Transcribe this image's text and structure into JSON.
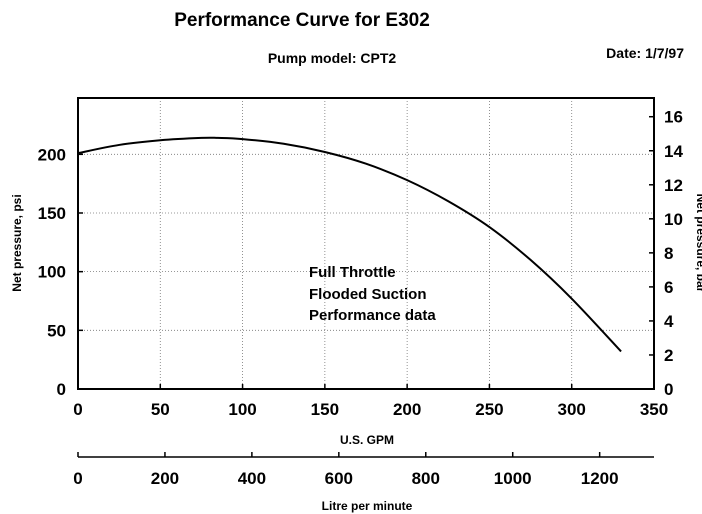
{
  "page": {
    "title": "Performance Curve for E302",
    "pump_model": "Pump model: CPT2",
    "date": "Date: 1/7/97"
  },
  "chart_data": {
    "type": "line",
    "title": "Performance Curve for E302",
    "xlabel": "U.S. GPM",
    "ylabel": "Net pressure, psi",
    "y2label": "Net pressure, bar",
    "x2label": "Litre per minute",
    "xlim": [
      0,
      350
    ],
    "ylim": [
      0,
      248
    ],
    "y2lim": [
      0,
      17.1
    ],
    "x2lim": [
      0,
      1325
    ],
    "x_ticks": [
      0,
      50,
      100,
      150,
      200,
      250,
      300,
      350
    ],
    "y_ticks": [
      0,
      50,
      100,
      150,
      200
    ],
    "y2_ticks": [
      0,
      2,
      4,
      6,
      8,
      10,
      12,
      14,
      16
    ],
    "x2_ticks": [
      0,
      200,
      400,
      600,
      800,
      1000,
      1200
    ],
    "grid": true,
    "annotations": [
      "Full Throttle",
      "Flooded Suction",
      "Performance data"
    ],
    "series": [
      {
        "x": [
          0,
          25,
          50,
          75,
          85,
          100,
          125,
          150,
          175,
          200,
          225,
          250,
          275,
          300,
          330
        ],
        "values": [
          201,
          208,
          212,
          214,
          214,
          213,
          209,
          202,
          192,
          178,
          160,
          138,
          110,
          77,
          32
        ]
      }
    ]
  }
}
